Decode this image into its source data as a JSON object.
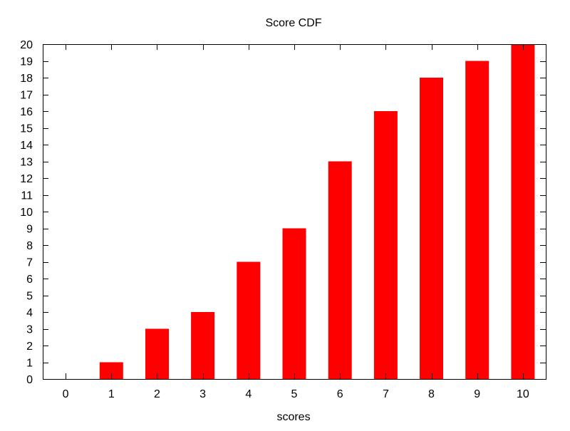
{
  "chart_data": {
    "type": "bar",
    "title": "Score CDF",
    "xlabel": "scores",
    "ylabel": "",
    "categories": [
      "0",
      "1",
      "2",
      "3",
      "4",
      "5",
      "6",
      "7",
      "8",
      "9",
      "10"
    ],
    "values": [
      0,
      1,
      3,
      4,
      7,
      9,
      13,
      16,
      18,
      19,
      20
    ],
    "ylim": [
      0,
      20
    ],
    "yticks": [
      0,
      1,
      2,
      3,
      4,
      5,
      6,
      7,
      8,
      9,
      10,
      11,
      12,
      13,
      14,
      15,
      16,
      17,
      18,
      19,
      20
    ],
    "bar_color": "#ff0000",
    "grid": false,
    "legend": "none"
  }
}
